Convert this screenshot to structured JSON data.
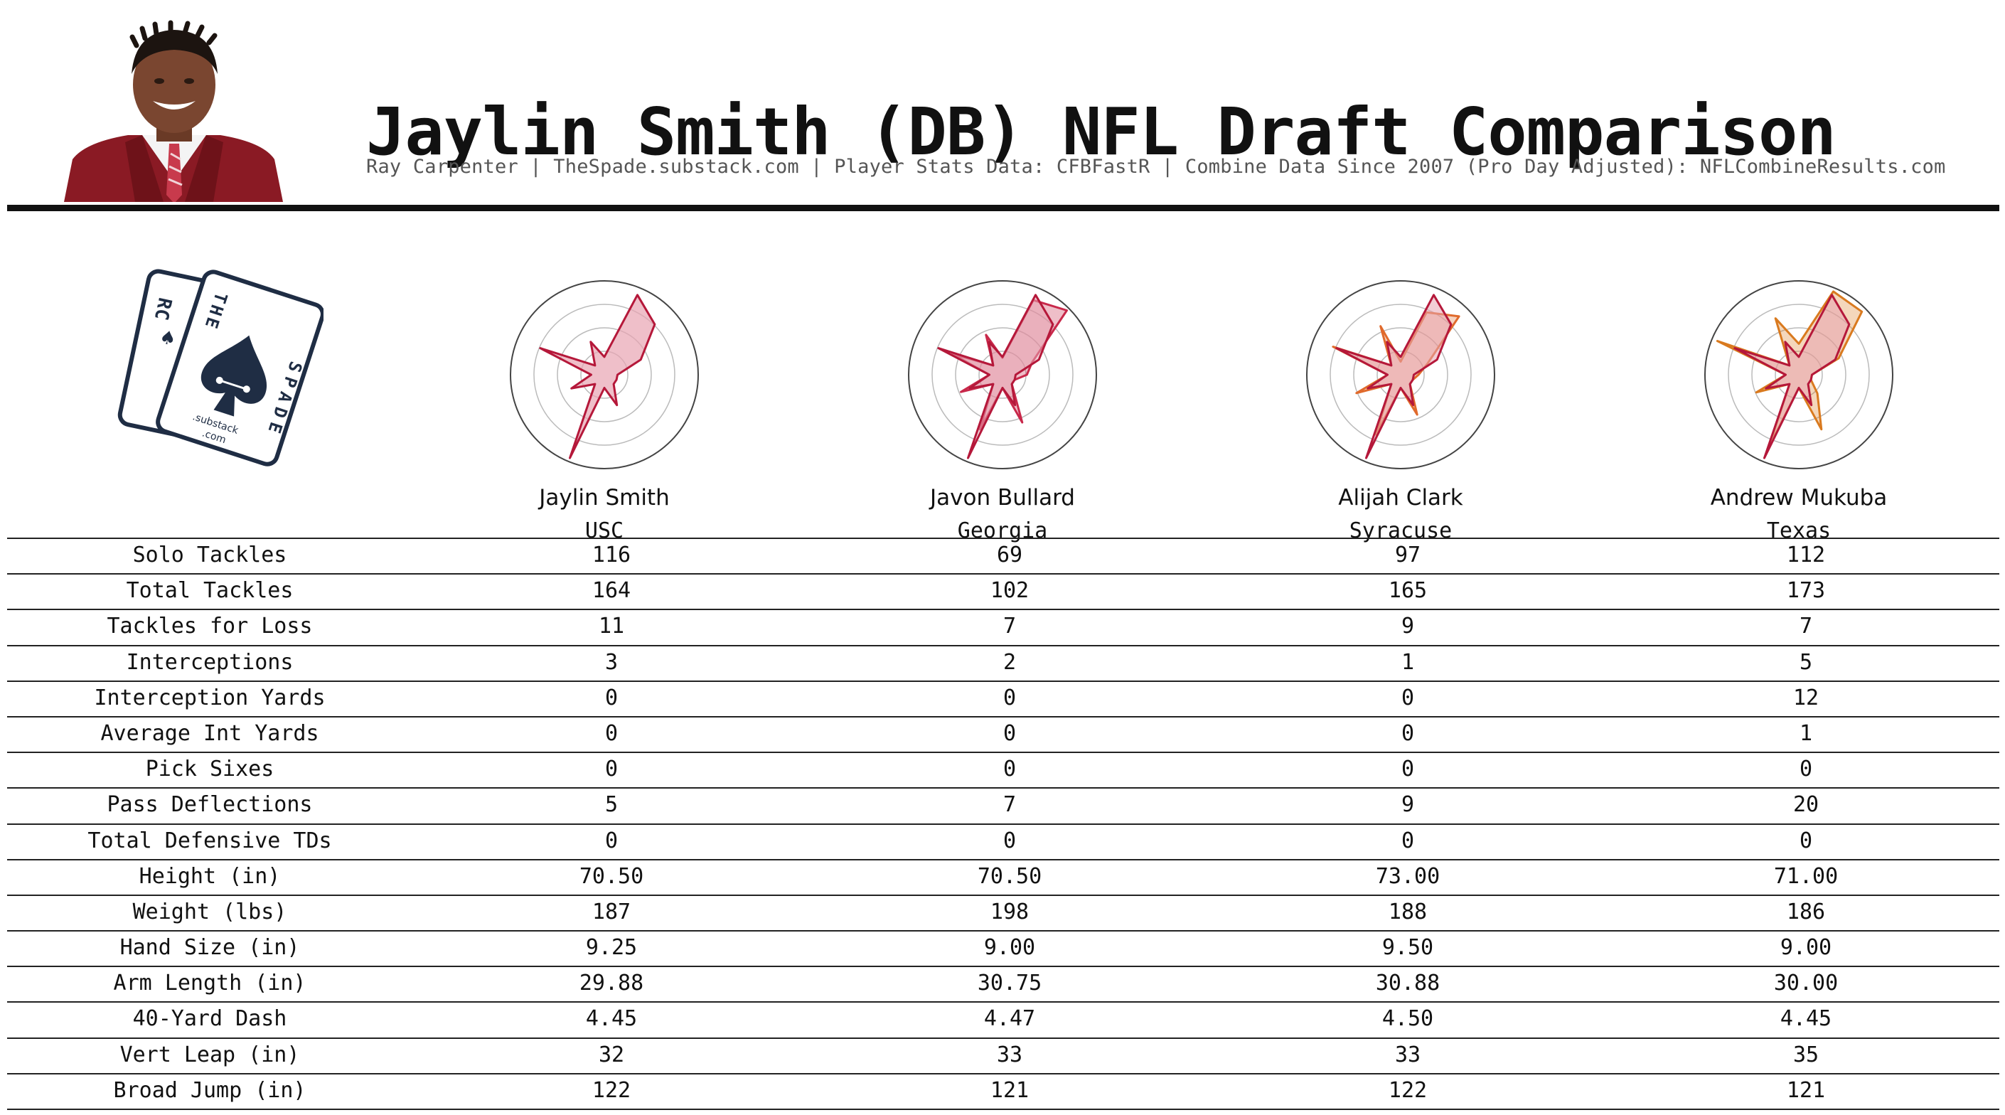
{
  "header": {
    "title": "Jaylin Smith (DB) NFL Draft Comparison",
    "subtitle": "Ray Carpenter | TheSpade.substack.com | Player Stats Data: CFBFastR | Combine Data Since 2007 (Pro Day Adjusted): NFLCombineResults.com"
  },
  "logo": {
    "letters_back": "RC",
    "letters_front_top": "THE",
    "letters_front_side": "SPADE",
    "footer_line1": ".substack",
    "footer_line2": ".com",
    "color": "#1f2d44"
  },
  "players": [
    {
      "name": "Jaylin Smith",
      "school": "USC",
      "radar": [
        0.19,
        0.92,
        0.76,
        0.42,
        0.14,
        0.14,
        0.14,
        0.35,
        0.14,
        0.96,
        0.14,
        0.38,
        0.14,
        0.74,
        0.14,
        0.38
      ],
      "compare_radar": null,
      "compare_color": null
    },
    {
      "name": "Javon Bullard",
      "school": "Georgia",
      "radar": [
        0.19,
        0.92,
        0.76,
        0.42,
        0.14,
        0.14,
        0.14,
        0.35,
        0.14,
        0.96,
        0.14,
        0.38,
        0.14,
        0.74,
        0.14,
        0.38
      ],
      "compare_radar": [
        0.18,
        0.86,
        0.97,
        0.34,
        0.26,
        0.14,
        0.14,
        0.55,
        0.14,
        0.63,
        0.14,
        0.48,
        0.14,
        0.58,
        0.14,
        0.46
      ],
      "compare_color": "#c8284a"
    },
    {
      "name": "Alijah Clark",
      "school": "Syracuse",
      "radar": [
        0.19,
        0.92,
        0.76,
        0.42,
        0.14,
        0.14,
        0.14,
        0.35,
        0.14,
        0.96,
        0.14,
        0.38,
        0.14,
        0.74,
        0.14,
        0.38
      ],
      "compare_radar": [
        0.14,
        0.72,
        0.88,
        0.31,
        0.19,
        0.14,
        0.14,
        0.46,
        0.14,
        0.69,
        0.14,
        0.51,
        0.14,
        0.78,
        0.14,
        0.56
      ],
      "compare_color": "#e06a2c"
    },
    {
      "name": "Andrew Mukuba",
      "school": "Texas",
      "radar": [
        0.19,
        0.92,
        0.76,
        0.42,
        0.14,
        0.14,
        0.14,
        0.35,
        0.14,
        0.96,
        0.14,
        0.38,
        0.14,
        0.74,
        0.14,
        0.38
      ],
      "compare_radar": [
        0.33,
        0.96,
        0.95,
        0.46,
        0.14,
        0.14,
        0.28,
        0.63,
        0.14,
        0.83,
        0.14,
        0.49,
        0.14,
        0.94,
        0.14,
        0.65
      ],
      "compare_color": "#d97a1f"
    }
  ],
  "colors": {
    "primary": "#b5183a",
    "primary_fill": "#e8a4b2",
    "ring": "#bbbbbb",
    "outer_ring": "#444444"
  },
  "stats": [
    {
      "label": "Solo Tackles",
      "values": [
        "116",
        "69",
        "97",
        "112"
      ]
    },
    {
      "label": "Total Tackles",
      "values": [
        "164",
        "102",
        "165",
        "173"
      ]
    },
    {
      "label": "Tackles for Loss",
      "values": [
        "11",
        "7",
        "9",
        "7"
      ]
    },
    {
      "label": "Interceptions",
      "values": [
        "3",
        "2",
        "1",
        "5"
      ]
    },
    {
      "label": "Interception Yards",
      "values": [
        "0",
        "0",
        "0",
        "12"
      ]
    },
    {
      "label": "Average Int Yards",
      "values": [
        "0",
        "0",
        "0",
        "1"
      ]
    },
    {
      "label": "Pick Sixes",
      "values": [
        "0",
        "0",
        "0",
        "0"
      ]
    },
    {
      "label": "Pass Deflections",
      "values": [
        "5",
        "7",
        "9",
        "20"
      ]
    },
    {
      "label": "Total Defensive TDs",
      "values": [
        "0",
        "0",
        "0",
        "0"
      ]
    },
    {
      "label": "Height (in)",
      "values": [
        "70.50",
        "70.50",
        "73.00",
        "71.00"
      ]
    },
    {
      "label": "Weight (lbs)",
      "values": [
        "187",
        "198",
        "188",
        "186"
      ]
    },
    {
      "label": "Hand Size (in)",
      "values": [
        "9.25",
        "9.00",
        "9.50",
        "9.00"
      ]
    },
    {
      "label": "Arm Length (in)",
      "values": [
        "29.88",
        "30.75",
        "30.88",
        "30.00"
      ]
    },
    {
      "label": "40-Yard Dash",
      "values": [
        "4.45",
        "4.47",
        "4.50",
        "4.45"
      ]
    },
    {
      "label": "Vert Leap (in)",
      "values": [
        "32",
        "33",
        "33",
        "35"
      ]
    },
    {
      "label": "Broad Jump (in)",
      "values": [
        "122",
        "121",
        "122",
        "121"
      ]
    }
  ]
}
